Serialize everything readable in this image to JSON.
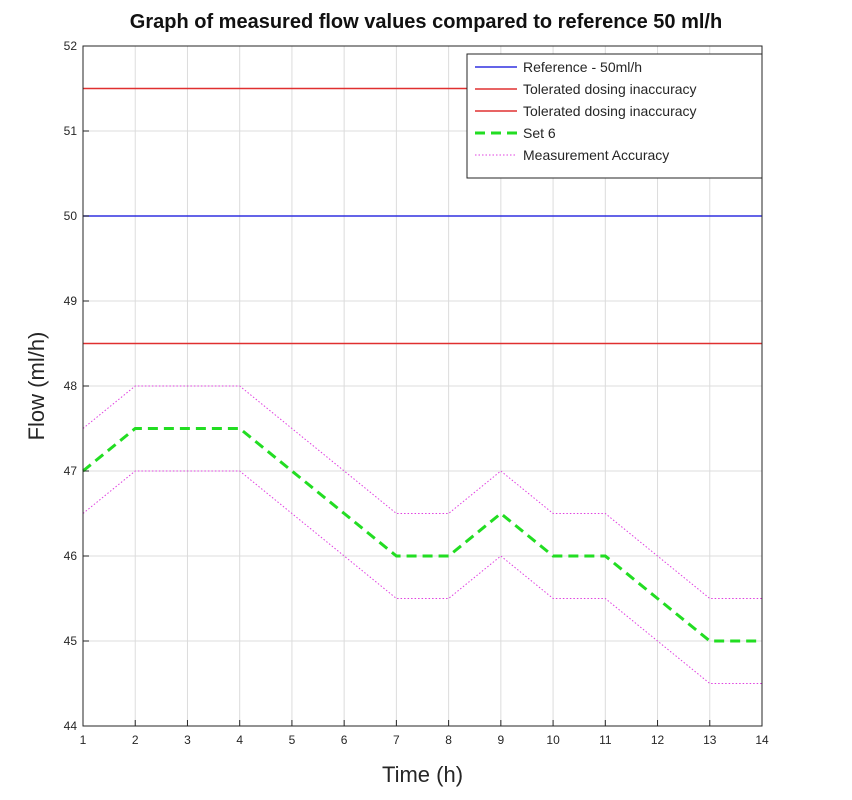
{
  "chart_data": {
    "type": "line",
    "title": "Graph of measured flow values compared to reference 50 ml/h",
    "xlabel": "Time (h)",
    "ylabel": "Flow (ml/h)",
    "xlim": [
      1,
      14
    ],
    "ylim": [
      44,
      52
    ],
    "xticks": [
      "1",
      "2",
      "3",
      "4",
      "5",
      "6",
      "7",
      "8",
      "9",
      "10",
      "11",
      "12",
      "13",
      "14"
    ],
    "yticks": [
      "44",
      "45",
      "46",
      "47",
      "48",
      "49",
      "50",
      "51",
      "52"
    ],
    "grid": true,
    "legend_position": "top-right",
    "x": [
      1,
      2,
      3,
      4,
      5,
      6,
      7,
      8,
      9,
      10,
      11,
      12,
      13,
      14
    ],
    "series": [
      {
        "name": "Reference - 50ml/h",
        "style": "solid",
        "color": "#3030e0",
        "values": [
          50,
          50,
          50,
          50,
          50,
          50,
          50,
          50,
          50,
          50,
          50,
          50,
          50,
          50
        ]
      },
      {
        "name": "Tolerated dosing inaccuracy",
        "style": "solid",
        "color": "#e03030",
        "values": [
          51.5,
          51.5,
          51.5,
          51.5,
          51.5,
          51.5,
          51.5,
          51.5,
          51.5,
          51.5,
          51.5,
          51.5,
          51.5,
          51.5
        ]
      },
      {
        "name": "Tolerated dosing inaccuracy",
        "style": "solid",
        "color": "#e03030",
        "values": [
          48.5,
          48.5,
          48.5,
          48.5,
          48.5,
          48.5,
          48.5,
          48.5,
          48.5,
          48.5,
          48.5,
          48.5,
          48.5,
          48.5
        ]
      },
      {
        "name": "Set 6",
        "style": "dashed",
        "color": "#22dd22",
        "values": [
          47,
          47.5,
          47.5,
          47.5,
          47,
          46.5,
          46,
          46,
          46.5,
          46,
          46,
          45.5,
          45,
          45
        ]
      },
      {
        "name": "Measurement Accuracy",
        "style": "dotted",
        "color": "#e040e0",
        "values": [
          47.5,
          48,
          48,
          48,
          47.5,
          47,
          46.5,
          46.5,
          47,
          46.5,
          46.5,
          46,
          45.5,
          45.5
        ]
      },
      {
        "name": "",
        "style": "dotted",
        "color": "#e040e0",
        "values": [
          46.5,
          47,
          47,
          47,
          46.5,
          46,
          45.5,
          45.5,
          46,
          45.5,
          45.5,
          45,
          44.5,
          44.5
        ]
      }
    ]
  }
}
